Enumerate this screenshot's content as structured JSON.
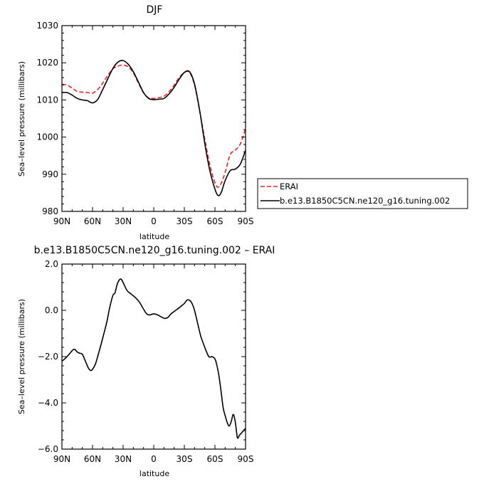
{
  "chart_data": [
    {
      "type": "line",
      "title": "DJF",
      "xlabel": "latitude",
      "ylabel": "Sea–level pressure (millibars)",
      "x_ticks": [
        90,
        60,
        30,
        0,
        -30,
        -60,
        -90
      ],
      "x_tick_labels": [
        "90N",
        "60N",
        "30N",
        "0",
        "30S",
        "60S",
        "90S"
      ],
      "xlim": [
        90,
        -90
      ],
      "ylim": [
        980,
        1030
      ],
      "y_ticks": [
        980,
        990,
        1000,
        1010,
        1020,
        1030
      ],
      "y_tick_labels": [
        "980",
        "990",
        "1000",
        "1010",
        "1020",
        "1030"
      ],
      "grid": false,
      "legend": "right, outside plot",
      "series": [
        {
          "name": "ERAI",
          "color": "#e8262a",
          "style": "dashed",
          "x": [
            90,
            85,
            80,
            75,
            70,
            65,
            60,
            55,
            50,
            45,
            40,
            35,
            30,
            25,
            20,
            15,
            10,
            5,
            0,
            -5,
            -10,
            -15,
            -20,
            -25,
            -30,
            -35,
            -40,
            -45,
            -50,
            -55,
            -60,
            -63,
            -66,
            -70,
            -75,
            -80,
            -85,
            -90
          ],
          "values": [
            1014.2,
            1014.0,
            1013.2,
            1012.3,
            1012.1,
            1012.0,
            1011.8,
            1012.8,
            1014.5,
            1016.6,
            1018.4,
            1019.1,
            1019.4,
            1018.9,
            1017.3,
            1014.5,
            1011.9,
            1010.6,
            1010.4,
            1010.6,
            1011.0,
            1012.2,
            1014.0,
            1016.0,
            1017.4,
            1017.4,
            1014.0,
            1007.0,
            999.5,
            992.5,
            987.7,
            986.5,
            987.5,
            990.5,
            995.3,
            996.5,
            998.2,
            1002.3
          ]
        },
        {
          "name": "b.e13.B1850C5CN.ne120_g16.tuning.002",
          "color": "#000000",
          "style": "solid",
          "x": [
            90,
            85,
            80,
            75,
            70,
            65,
            60,
            55,
            50,
            45,
            40,
            35,
            30,
            25,
            20,
            15,
            10,
            5,
            0,
            -5,
            -10,
            -15,
            -20,
            -25,
            -30,
            -35,
            -40,
            -45,
            -50,
            -55,
            -60,
            -63,
            -66,
            -70,
            -75,
            -80,
            -85,
            -90
          ],
          "values": [
            1012.0,
            1012.0,
            1011.3,
            1010.4,
            1010.0,
            1009.8,
            1009.2,
            1010.1,
            1012.8,
            1015.7,
            1018.5,
            1020.2,
            1020.6,
            1019.6,
            1017.6,
            1014.8,
            1012.0,
            1010.4,
            1010.1,
            1010.2,
            1010.4,
            1011.6,
            1013.4,
            1015.6,
            1017.4,
            1017.6,
            1014.3,
            1007.2,
            998.3,
            991.0,
            986.0,
            984.3,
            985.0,
            988.3,
            991.0,
            991.4,
            992.8,
            996.5
          ]
        }
      ]
    },
    {
      "type": "line",
      "title": "b.e13.B1850C5CN.ne120_g16.tuning.002 – ERAI",
      "xlabel": "latitude",
      "ylabel": "Sea–level pressure (millibars)",
      "x_ticks": [
        90,
        60,
        30,
        0,
        -30,
        -60,
        -90
      ],
      "x_tick_labels": [
        "90N",
        "60N",
        "30N",
        "0",
        "30S",
        "60S",
        "90S"
      ],
      "xlim": [
        90,
        -90
      ],
      "ylim": [
        -6.0,
        2.0
      ],
      "y_ticks": [
        -6.0,
        -4.0,
        -2.0,
        0.0,
        2.0
      ],
      "y_tick_labels": [
        "−6.0",
        "−4.0",
        "−2.0",
        "0.0",
        "2.0"
      ],
      "grid": false,
      "series": [
        {
          "color": "#000000",
          "style": "solid",
          "x": [
            90,
            86,
            82,
            79,
            77,
            75,
            73,
            70,
            67,
            64,
            62,
            60,
            57,
            54,
            50,
            46,
            43,
            40,
            38,
            36,
            34,
            32,
            30,
            26,
            22,
            18,
            14,
            10,
            7,
            4,
            0,
            -4,
            -8,
            -11,
            -14,
            -17,
            -20,
            -23,
            -26,
            -30,
            -33,
            -36,
            -38,
            -40,
            -43,
            -46,
            -50,
            -54,
            -57,
            -60,
            -62,
            -64,
            -66,
            -68,
            -70,
            -72,
            -74,
            -76,
            -78,
            -80,
            -82,
            -84,
            -86,
            -88,
            -90
          ],
          "values": [
            -2.2,
            -2.05,
            -1.85,
            -1.7,
            -1.7,
            -1.8,
            -1.85,
            -1.9,
            -2.2,
            -2.5,
            -2.6,
            -2.55,
            -2.3,
            -1.85,
            -1.2,
            -0.5,
            0.15,
            0.65,
            0.75,
            1.1,
            1.3,
            1.35,
            1.2,
            0.85,
            0.7,
            0.55,
            0.35,
            0.05,
            -0.15,
            -0.2,
            -0.15,
            -0.2,
            -0.3,
            -0.35,
            -0.3,
            -0.15,
            -0.05,
            0.05,
            0.15,
            0.3,
            0.45,
            0.4,
            0.25,
            0.0,
            -0.55,
            -1.1,
            -1.6,
            -2.0,
            -2.0,
            -2.1,
            -2.4,
            -2.85,
            -3.5,
            -4.2,
            -4.55,
            -4.85,
            -5.0,
            -4.8,
            -4.5,
            -4.85,
            -5.5,
            -5.4,
            -5.3,
            -5.2,
            -5.1
          ]
        }
      ]
    }
  ]
}
